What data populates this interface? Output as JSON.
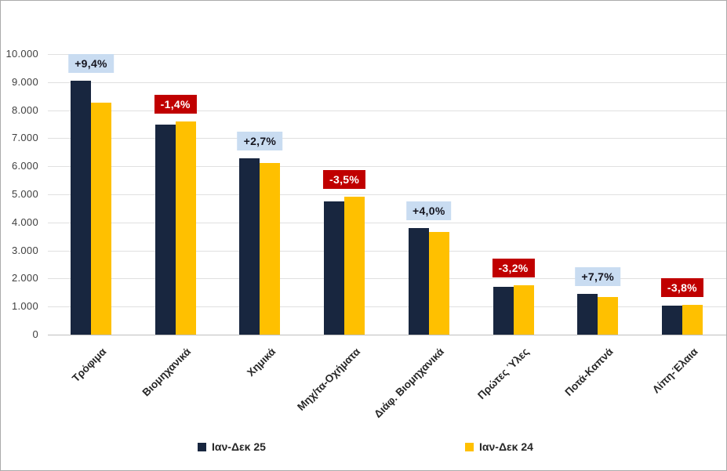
{
  "chart_data": {
    "type": "bar",
    "title": "",
    "xlabel": "",
    "ylabel": "",
    "categories": [
      "Τρόφιμα",
      "Βιομηχανικά",
      "Χημικά",
      "Μηχ/τα-Οχήματα",
      "Διάφ. Βιομηχανικά",
      "Πρώτες Ύλες",
      "Ποτά-Καπνά",
      "Λίπη-Έλαια"
    ],
    "series": [
      {
        "name": "Ιαν-Δεκ 25",
        "color": "#18263f",
        "values": [
          9050,
          7500,
          6280,
          4740,
          3810,
          1690,
          1450,
          1030
        ]
      },
      {
        "name": "Ιαν-Δεκ 24",
        "color": "#ffc000",
        "values": [
          8270,
          7610,
          6120,
          4910,
          3660,
          1750,
          1350,
          1070
        ]
      }
    ],
    "pct_labels": [
      {
        "text": "+9,4%",
        "direction": "up"
      },
      {
        "text": "-1,4%",
        "direction": "down"
      },
      {
        "text": "+2,7%",
        "direction": "up"
      },
      {
        "text": "-3,5%",
        "direction": "down"
      },
      {
        "text": "+4,0%",
        "direction": "up"
      },
      {
        "text": "-3,2%",
        "direction": "down"
      },
      {
        "text": "+7,7%",
        "direction": "up"
      },
      {
        "text": "-3,8%",
        "direction": "down"
      }
    ],
    "ylim": [
      0,
      10000
    ],
    "ytick_step": 1000,
    "ytick_labels": [
      "0",
      "1.000",
      "2.000",
      "3.000",
      "4.000",
      "5.000",
      "6.000",
      "7.000",
      "8.000",
      "9.000",
      "10.000"
    ],
    "grid": true,
    "legend_position": "bottom"
  },
  "colors": {
    "positive_badge_bg": "#c9dcf1",
    "positive_badge_text": "#15151f",
    "negative_badge_bg": "#c00000",
    "negative_badge_text": "#ffffff",
    "gridline": "#e0e0e0",
    "series_25": "#18263f",
    "series_24": "#ffc000"
  }
}
